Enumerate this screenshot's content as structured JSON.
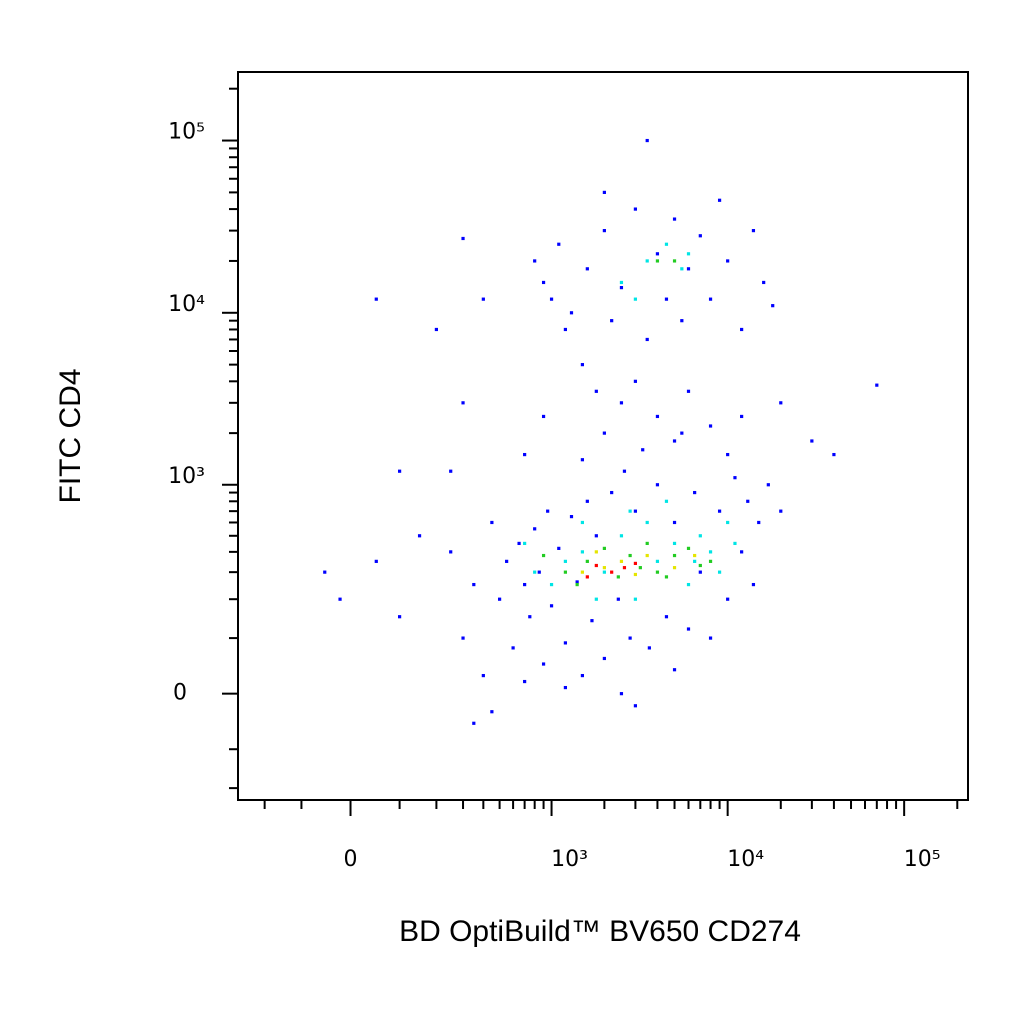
{
  "chart_data": {
    "type": "scatter",
    "scale": "biexponential",
    "x_label": "BD OptiBuild™ BV650 CD274",
    "y_label": "FITC CD4",
    "xlim": [
      -300,
      230000
    ],
    "ylim": [
      -240,
      250000
    ],
    "xticks": [
      0,
      {
        "value": 1000,
        "label": "10³"
      },
      {
        "value": 10000,
        "label": "10⁴"
      },
      {
        "value": 100000,
        "label": "10⁵"
      }
    ],
    "yticks": [
      0,
      {
        "value": 1000,
        "label": "10³"
      },
      {
        "value": 10000,
        "label": "10⁴"
      },
      {
        "value": 100000,
        "label": "10⁵"
      }
    ],
    "xminorticks": [
      -200,
      -100,
      100,
      200,
      300,
      400,
      500,
      600,
      700,
      800,
      900,
      2000,
      3000,
      4000,
      5000,
      6000,
      7000,
      8000,
      9000,
      20000,
      30000,
      40000,
      50000,
      60000,
      70000,
      80000,
      90000,
      200000
    ],
    "yminorticks": [
      -200,
      -100,
      100,
      200,
      300,
      400,
      500,
      600,
      700,
      800,
      900,
      2000,
      3000,
      4000,
      5000,
      6000,
      7000,
      8000,
      9000,
      20000,
      30000,
      40000,
      50000,
      60000,
      70000,
      80000,
      90000,
      200000
    ],
    "series": [
      {
        "color": "#0000ff",
        "x": [
          -50,
          -20,
          50,
          100,
          150,
          250,
          300,
          350,
          400,
          450,
          500,
          550,
          600,
          650,
          700,
          750,
          800,
          850,
          900,
          950,
          1000,
          1100,
          1200,
          1300,
          1400,
          1500,
          1600,
          1700,
          1800,
          2000,
          2200,
          2400,
          2600,
          2800,
          3000,
          3300,
          3600,
          4000,
          4500,
          5000,
          5500,
          6000,
          6500,
          7000,
          8000,
          9000,
          10000,
          11000,
          12000,
          13000,
          14000,
          15000,
          17000,
          20000,
          2500,
          3000,
          4000,
          5000,
          6000,
          8000,
          10000,
          12000,
          2000,
          1800,
          1500,
          1200,
          1000,
          900,
          800,
          1100,
          1300,
          1600,
          2000,
          2200,
          2500,
          3000,
          3500,
          4000,
          4500,
          5000,
          5500,
          6000,
          7000,
          8000,
          9000,
          10000,
          12000,
          14000,
          16000,
          3500,
          2000,
          400,
          50,
          300,
          200,
          300,
          20000,
          30000,
          70000,
          40000,
          18000,
          100,
          250,
          350,
          450,
          700,
          1200,
          2500,
          3000,
          5000,
          700,
          900,
          1500
        ],
        "y": [
          300,
          200,
          350,
          150,
          500,
          400,
          100,
          250,
          30,
          600,
          200,
          350,
          80,
          450,
          250,
          150,
          550,
          300,
          50,
          700,
          180,
          420,
          90,
          650,
          260,
          30,
          800,
          140,
          500,
          60,
          900,
          200,
          1200,
          100,
          700,
          1600,
          80,
          1000,
          150,
          600,
          2000,
          120,
          900,
          300,
          100,
          700,
          200,
          1100,
          400,
          800,
          250,
          600,
          1000,
          700,
          3000,
          4000,
          2500,
          1800,
          3500,
          2200,
          1500,
          2500,
          2000,
          3500,
          5000,
          8000,
          12000,
          15000,
          20000,
          25000,
          10000,
          18000,
          30000,
          9000,
          14000,
          40000,
          7000,
          22000,
          12000,
          35000,
          9000,
          18000,
          28000,
          12000,
          45000,
          20000,
          8000,
          30000,
          15000,
          100000,
          50000,
          12000,
          12000,
          27000,
          8000,
          3000,
          3000,
          1800,
          3800,
          1500,
          11000,
          1200,
          1200,
          -50,
          -30,
          20,
          10,
          0,
          -20,
          40,
          1500,
          2500,
          1400
        ]
      },
      {
        "color": "#00e5e5",
        "x": [
          1000,
          1500,
          2000,
          2500,
          3000,
          3500,
          4000,
          5000,
          6000,
          7000,
          8000,
          9000,
          10000,
          1200,
          1800,
          2800,
          4500,
          2500,
          3500,
          4500,
          5500,
          3000,
          6000,
          1500,
          800,
          700,
          6500,
          11000
        ],
        "y": [
          250,
          400,
          300,
          500,
          200,
          600,
          350,
          450,
          250,
          500,
          400,
          300,
          600,
          350,
          200,
          700,
          800,
          15000,
          20000,
          25000,
          18000,
          12000,
          22000,
          600,
          300,
          450,
          350,
          450
        ]
      },
      {
        "color": "#22cc22",
        "x": [
          1200,
          1600,
          2000,
          2400,
          2800,
          3200,
          4000,
          5000,
          6000,
          7000,
          8000,
          1400,
          3500,
          4500,
          4000,
          5000,
          900
        ],
        "y": [
          300,
          350,
          420,
          280,
          380,
          320,
          300,
          380,
          420,
          330,
          350,
          250,
          450,
          280,
          20000,
          20000,
          380
        ]
      },
      {
        "color": "#e5e500",
        "x": [
          1500,
          2000,
          2500,
          3000,
          3500,
          5000,
          6500,
          1800
        ],
        "y": [
          300,
          320,
          350,
          290,
          380,
          320,
          380,
          400
        ]
      },
      {
        "color": "#ff0000",
        "x": [
          1800,
          2200,
          2600,
          3000,
          1600
        ],
        "y": [
          330,
          300,
          320,
          340,
          280
        ]
      }
    ]
  }
}
